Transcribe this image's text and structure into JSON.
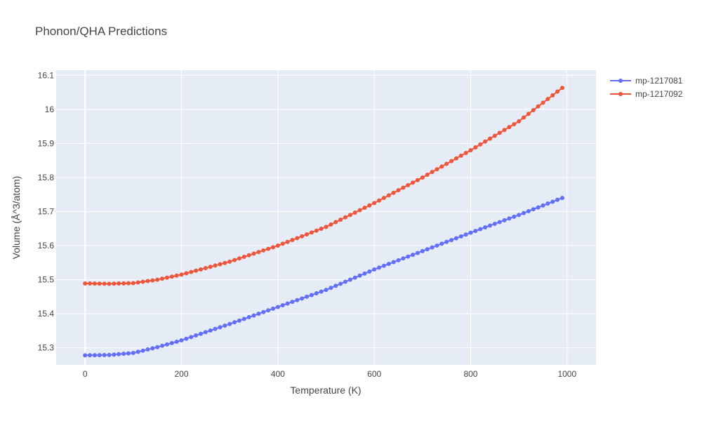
{
  "chart_data": {
    "type": "line",
    "title": "Phonon/QHA Predictions",
    "xlabel": "Temperature (K)",
    "ylabel": "Volume (Å^3/atom)",
    "xlim": [
      -60,
      1060
    ],
    "ylim": [
      15.25,
      16.115
    ],
    "xticks": [
      0,
      200,
      400,
      600,
      800,
      1000
    ],
    "yticks": [
      15.3,
      15.4,
      15.5,
      15.6,
      15.7,
      15.8,
      15.9,
      16,
      16.1
    ],
    "ytick_labels": [
      "15.3",
      "15.4",
      "15.5",
      "15.6",
      "15.7",
      "15.8",
      "15.9",
      "16",
      "16.1"
    ],
    "grid": true,
    "legend_position": "top-right",
    "series": [
      {
        "name": "mp-1217081",
        "color": "#636efa",
        "x_start": 0,
        "x_step": 10,
        "x_end": 990,
        "anchors": [
          [
            0,
            15.278
          ],
          [
            50,
            15.279
          ],
          [
            100,
            15.285
          ],
          [
            150,
            15.302
          ],
          [
            200,
            15.322
          ],
          [
            300,
            15.37
          ],
          [
            400,
            15.42
          ],
          [
            500,
            15.47
          ],
          [
            600,
            15.53
          ],
          [
            700,
            15.584
          ],
          [
            800,
            15.638
          ],
          [
            900,
            15.69
          ],
          [
            990,
            15.74
          ]
        ]
      },
      {
        "name": "mp-1217092",
        "color": "#ef553b",
        "x_start": 0,
        "x_step": 10,
        "x_end": 990,
        "anchors": [
          [
            0,
            15.489
          ],
          [
            50,
            15.488
          ],
          [
            100,
            15.49
          ],
          [
            150,
            15.5
          ],
          [
            200,
            15.515
          ],
          [
            300,
            15.553
          ],
          [
            400,
            15.6
          ],
          [
            500,
            15.655
          ],
          [
            600,
            15.725
          ],
          [
            700,
            15.8
          ],
          [
            800,
            15.88
          ],
          [
            900,
            15.965
          ],
          [
            990,
            16.063
          ]
        ]
      }
    ]
  }
}
